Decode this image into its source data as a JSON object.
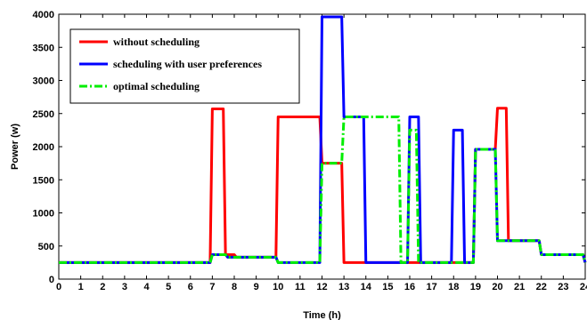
{
  "chart_data": {
    "type": "line",
    "title": "",
    "xlabel": "Time (h)",
    "ylabel": "Power (w)",
    "xlim": [
      0,
      24
    ],
    "ylim": [
      0,
      4000
    ],
    "x_ticks": [
      0,
      1,
      2,
      3,
      4,
      5,
      6,
      7,
      8,
      9,
      10,
      11,
      12,
      13,
      14,
      15,
      16,
      17,
      18,
      19,
      20,
      21,
      22,
      23,
      24
    ],
    "x_tick_labels": [
      "0",
      "1",
      "2",
      "3",
      "4",
      "5",
      "6",
      "7",
      "8",
      "9",
      "10",
      "11",
      "12",
      "13",
      "14",
      "15",
      "16",
      "17",
      "18",
      "19",
      "20",
      "21",
      "22",
      "23",
      "24"
    ],
    "y_ticks": [
      0,
      500,
      1000,
      1500,
      2000,
      2500,
      3000,
      3500,
      4000
    ],
    "y_tick_labels": [
      "0",
      "500",
      "1000",
      "1500",
      "2000",
      "2500",
      "3000",
      "3500",
      "4000"
    ],
    "grid": false,
    "legend_position": "top-left",
    "series": [
      {
        "name": "without scheduling",
        "color": "#ff0000",
        "dash": "solid",
        "x": [
          0,
          6.9,
          7.0,
          7.5,
          7.6,
          8.0,
          8.1,
          9.9,
          10.0,
          11.9,
          12.0,
          12.9,
          13.0,
          14.0,
          15.9,
          16.0,
          16.4,
          16.5,
          18.0,
          18.4,
          18.5,
          18.9,
          19.0,
          19.9,
          20.0,
          20.4,
          20.5,
          21.9,
          22.0,
          23.9,
          24.0
        ],
        "y": [
          250,
          250,
          2570,
          2570,
          370,
          370,
          330,
          330,
          2450,
          2450,
          1750,
          1750,
          250,
          250,
          250,
          250,
          250,
          250,
          250,
          250,
          250,
          250,
          1960,
          1960,
          2580,
          2580,
          580,
          580,
          370,
          370,
          250
        ]
      },
      {
        "name": "scheduling with user preferences",
        "color": "#0000ff",
        "dash": "solid",
        "x": [
          0,
          6.9,
          7.0,
          7.6,
          7.7,
          9.9,
          10.0,
          11.9,
          12.0,
          12.9,
          13.0,
          13.9,
          14.0,
          15.9,
          16.0,
          16.4,
          16.5,
          17.9,
          18.0,
          18.4,
          18.5,
          18.9,
          19.0,
          19.9,
          20.0,
          21.9,
          22.0,
          23.9,
          24.0
        ],
        "y": [
          250,
          250,
          370,
          370,
          330,
          330,
          250,
          250,
          3960,
          3960,
          2450,
          2450,
          250,
          250,
          2450,
          2450,
          250,
          250,
          2250,
          2250,
          250,
          250,
          1960,
          1960,
          580,
          580,
          370,
          370,
          250
        ]
      },
      {
        "name": "optimal scheduling",
        "color": "#00ee00",
        "dash": "dashdot",
        "x": [
          0,
          6.9,
          7.0,
          7.6,
          7.7,
          9.9,
          10.0,
          11.9,
          12.0,
          12.9,
          13.0,
          15.5,
          15.6,
          15.9,
          16.0,
          16.3,
          16.4,
          18.9,
          19.0,
          19.9,
          20.0,
          21.9,
          22.0,
          23.9,
          24.0
        ],
        "y": [
          250,
          250,
          370,
          370,
          330,
          330,
          250,
          250,
          1750,
          1750,
          2450,
          2450,
          250,
          250,
          2250,
          2250,
          250,
          250,
          1960,
          1960,
          580,
          580,
          370,
          370,
          250
        ]
      }
    ]
  }
}
